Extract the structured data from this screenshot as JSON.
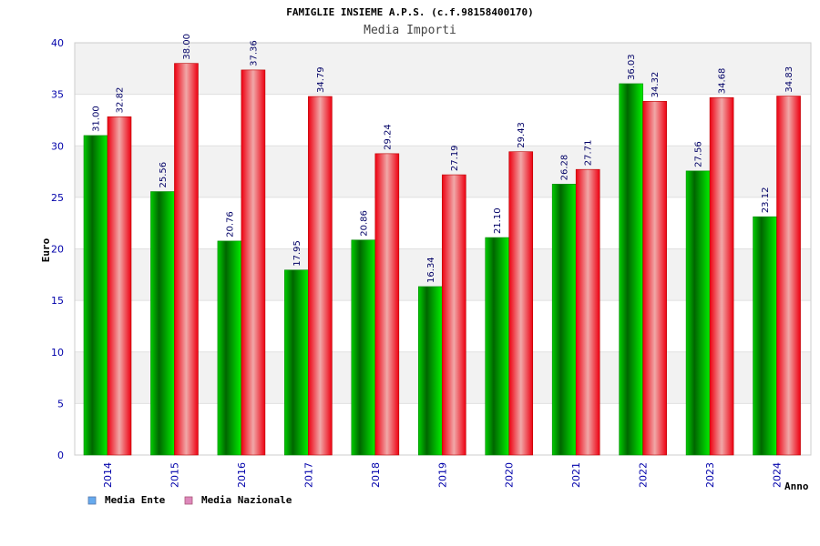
{
  "chart_data": {
    "type": "bar",
    "title": "FAMIGLIE INSIEME A.P.S. (c.f.98158400170)",
    "subtitle": "Media Importi",
    "xlabel": "Anno",
    "ylabel": "Euro",
    "ylim": [
      0,
      40
    ],
    "yticks": [
      0,
      5,
      10,
      15,
      20,
      25,
      30,
      35,
      40
    ],
    "categories": [
      "2014",
      "2015",
      "2016",
      "2017",
      "2018",
      "2019",
      "2020",
      "2021",
      "2022",
      "2023",
      "2024"
    ],
    "series": [
      {
        "name": "Media Ente",
        "color": "#00cc00",
        "values": [
          31.0,
          25.56,
          20.76,
          17.95,
          20.86,
          16.34,
          21.1,
          26.28,
          36.03,
          27.56,
          23.12
        ],
        "labels": [
          "31.00",
          "25.56",
          "20.76",
          "17.95",
          "20.86",
          "16.34",
          "21.10",
          "26.28",
          "36.03",
          "27.56",
          "23.12"
        ]
      },
      {
        "name": "Media Nazionale",
        "color": "#ee1122",
        "values": [
          32.82,
          38.0,
          37.36,
          34.79,
          29.24,
          27.19,
          29.43,
          27.71,
          34.32,
          34.68,
          34.83
        ],
        "labels": [
          "32.82",
          "38.00",
          "37.36",
          "34.79",
          "29.24",
          "27.19",
          "29.43",
          "27.71",
          "34.32",
          "34.68",
          "34.83"
        ]
      }
    ],
    "grid": true,
    "legend_position": "bottom-left",
    "legend_colors": [
      "#66aaee",
      "#dd88bb"
    ]
  }
}
